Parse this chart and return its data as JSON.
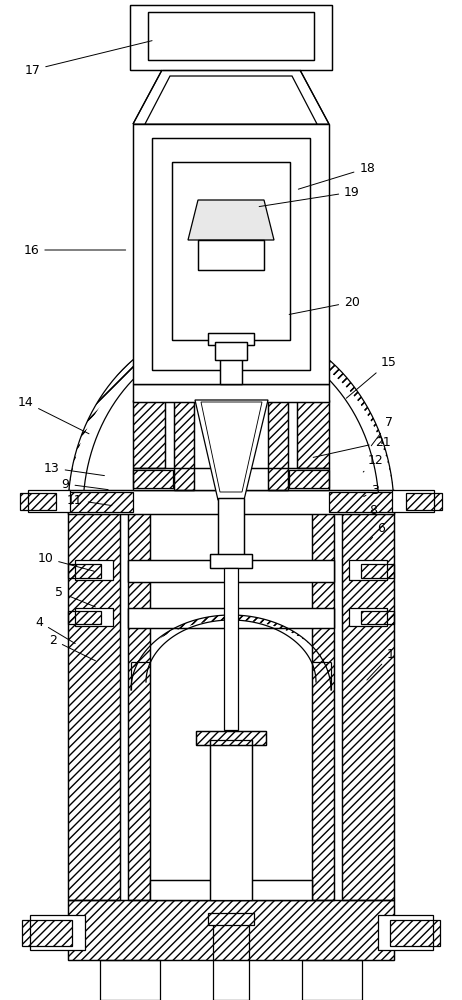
{
  "fig_width": 4.62,
  "fig_height": 10.0,
  "dpi": 100,
  "bg_color": "#ffffff",
  "lc": "#000000",
  "lw": 0.9,
  "annotations": {
    "17": {
      "lxy": [
        0.07,
        0.93
      ],
      "txy": [
        0.335,
        0.96
      ]
    },
    "18": {
      "lxy": [
        0.795,
        0.832
      ],
      "txy": [
        0.64,
        0.81
      ]
    },
    "19": {
      "lxy": [
        0.762,
        0.808
      ],
      "txy": [
        0.555,
        0.793
      ]
    },
    "16": {
      "lxy": [
        0.068,
        0.75
      ],
      "txy": [
        0.278,
        0.75
      ]
    },
    "20": {
      "lxy": [
        0.762,
        0.698
      ],
      "txy": [
        0.62,
        0.685
      ]
    },
    "15": {
      "lxy": [
        0.842,
        0.638
      ],
      "txy": [
        0.745,
        0.6
      ]
    },
    "14": {
      "lxy": [
        0.055,
        0.598
      ],
      "txy": [
        0.198,
        0.565
      ]
    },
    "21": {
      "lxy": [
        0.828,
        0.558
      ],
      "txy": [
        0.672,
        0.542
      ]
    },
    "7": {
      "lxy": [
        0.842,
        0.578
      ],
      "txy": [
        0.8,
        0.552
      ]
    },
    "13": {
      "lxy": [
        0.112,
        0.532
      ],
      "txy": [
        0.232,
        0.524
      ]
    },
    "12": {
      "lxy": [
        0.812,
        0.54
      ],
      "txy": [
        0.782,
        0.526
      ]
    },
    "9": {
      "lxy": [
        0.142,
        0.516
      ],
      "txy": [
        0.24,
        0.51
      ]
    },
    "3": {
      "lxy": [
        0.812,
        0.51
      ],
      "txy": [
        0.782,
        0.502
      ]
    },
    "11": {
      "lxy": [
        0.162,
        0.5
      ],
      "txy": [
        0.248,
        0.494
      ]
    },
    "8": {
      "lxy": [
        0.808,
        0.49
      ],
      "txy": [
        0.783,
        0.478
      ]
    },
    "6": {
      "lxy": [
        0.825,
        0.472
      ],
      "txy": [
        0.797,
        0.458
      ]
    },
    "10": {
      "lxy": [
        0.098,
        0.442
      ],
      "txy": [
        0.21,
        0.428
      ]
    },
    "5": {
      "lxy": [
        0.128,
        0.408
      ],
      "txy": [
        0.212,
        0.392
      ]
    },
    "1": {
      "lxy": [
        0.845,
        0.345
      ],
      "txy": [
        0.79,
        0.318
      ]
    },
    "2": {
      "lxy": [
        0.115,
        0.36
      ],
      "txy": [
        0.212,
        0.338
      ]
    },
    "4": {
      "lxy": [
        0.085,
        0.378
      ],
      "txy": [
        0.168,
        0.355
      ]
    }
  }
}
